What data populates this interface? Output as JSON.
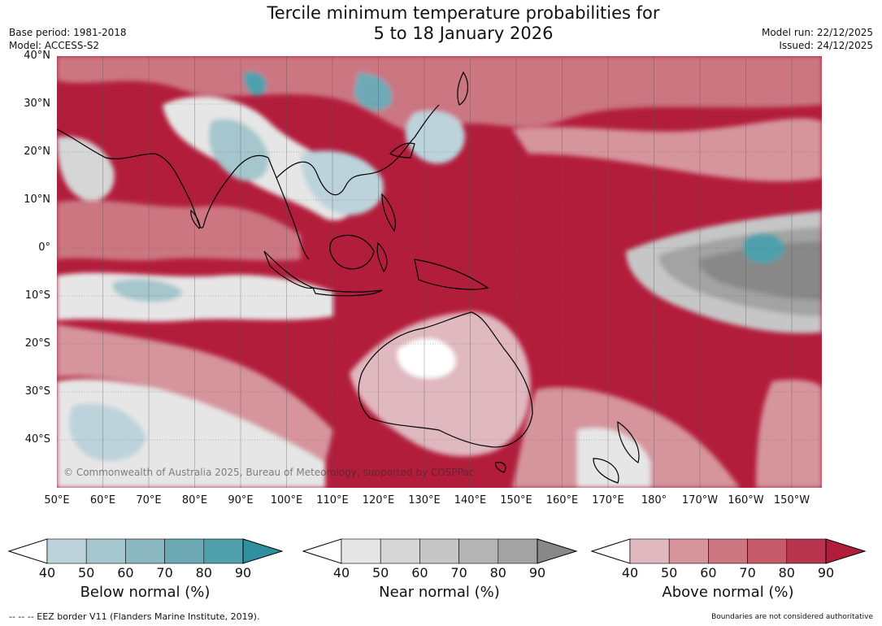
{
  "title_line1": "Tercile minimum temperature probabilities for",
  "title_line2": "5 to 18 January 2026",
  "meta_left": {
    "base_period": "Base period: 1981-2018",
    "model": "Model: ACCESS-S2"
  },
  "meta_right": {
    "model_run": "Model run: 22/12/2025",
    "issued": "Issued: 24/12/2025"
  },
  "copyright": "© Commonwealth of Australia 2025, Bureau of Meteorology, supported by COSPPac",
  "lat_labels": [
    "40°N",
    "30°N",
    "20°N",
    "10°N",
    "0°",
    "10°S",
    "20°S",
    "30°S",
    "40°S"
  ],
  "lon_labels": [
    "50°E",
    "60°E",
    "70°E",
    "80°E",
    "90°E",
    "100°E",
    "110°E",
    "120°E",
    "130°E",
    "140°E",
    "150°E",
    "160°E",
    "170°E",
    "180°",
    "170°W",
    "160°W",
    "150°W"
  ],
  "colorbars": [
    {
      "title": "Below normal (%)",
      "ticks": [
        "40",
        "50",
        "60",
        "70",
        "80",
        "90"
      ],
      "colors": [
        "#bcd3db",
        "#a5c6cd",
        "#8bb8c1",
        "#6eaab6",
        "#50a0ad",
        "#2f8f9e"
      ]
    },
    {
      "title": "Near normal (%)",
      "ticks": [
        "40",
        "50",
        "60",
        "70",
        "80",
        "90"
      ],
      "colors": [
        "#e6e6e6",
        "#d6d6d6",
        "#c6c6c6",
        "#b4b4b4",
        "#a3a3a3",
        "#888888"
      ]
    },
    {
      "title": "Above normal (%)",
      "ticks": [
        "40",
        "50",
        "60",
        "70",
        "80",
        "90"
      ],
      "colors": [
        "#e0b8bf",
        "#d6949d",
        "#cc7682",
        "#c45a6a",
        "#b83550",
        "#b31d3c"
      ]
    }
  ],
  "footer_left": "--  --  -- EEZ border V11 (Flanders Marine Institute, 2019).",
  "footer_right": "Boundaries are not considered authoritative"
}
